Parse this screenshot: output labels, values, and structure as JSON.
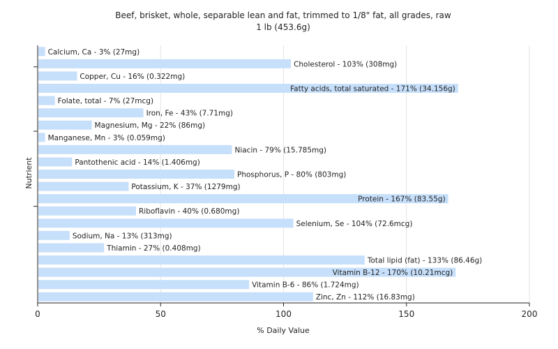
{
  "chart_data": {
    "type": "bar",
    "orientation": "horizontal",
    "title": "Beef, brisket, whole, separable lean and fat, trimmed to 1/8\" fat, all grades, raw",
    "subtitle": "1 lb (453.6g)",
    "xlabel": "% Daily Value",
    "ylabel": "Nutrient",
    "xlim": [
      0,
      200
    ],
    "xticks": [
      0,
      50,
      100,
      150,
      200
    ],
    "grid": true,
    "bar_color": "#c6dffa",
    "categories": [
      "Calcium, Ca",
      "Cholesterol",
      "Copper, Cu",
      "Fatty acids, total saturated",
      "Folate, total",
      "Iron, Fe",
      "Magnesium, Mg",
      "Manganese, Mn",
      "Niacin",
      "Pantothenic acid",
      "Phosphorus, P",
      "Potassium, K",
      "Protein",
      "Riboflavin",
      "Selenium, Se",
      "Sodium, Na",
      "Thiamin",
      "Total lipid (fat)",
      "Vitamin B-12",
      "Vitamin B-6",
      "Zinc, Zn"
    ],
    "values": [
      3,
      103,
      16,
      171,
      7,
      43,
      22,
      3,
      79,
      14,
      80,
      37,
      167,
      40,
      104,
      13,
      27,
      133,
      170,
      86,
      112
    ],
    "labels": [
      "Calcium, Ca - 3% (27mg)",
      "Cholesterol - 103% (308mg)",
      "Copper, Cu - 16% (0.322mg)",
      "Fatty acids, total saturated - 171% (34.156g)",
      "Folate, total - 7% (27mcg)",
      "Iron, Fe - 43% (7.71mg)",
      "Magnesium, Mg - 22% (86mg)",
      "Manganese, Mn - 3% (0.059mg)",
      "Niacin - 79% (15.785mg)",
      "Pantothenic acid - 14% (1.406mg)",
      "Phosphorus, P - 80% (803mg)",
      "Potassium, K - 37% (1279mg)",
      "Protein - 167% (83.55g)",
      "Riboflavin - 40% (0.680mg)",
      "Selenium, Se - 104% (72.6mcg)",
      "Sodium, Na - 13% (313mg)",
      "Thiamin - 27% (0.408mg)",
      "Total lipid (fat) - 133% (86.46g)",
      "Vitamin B-12 - 170% (10.21mcg)",
      "Vitamin B-6 - 86% (1.724mg)",
      "Zinc, Zn - 112% (16.83mg)"
    ]
  }
}
